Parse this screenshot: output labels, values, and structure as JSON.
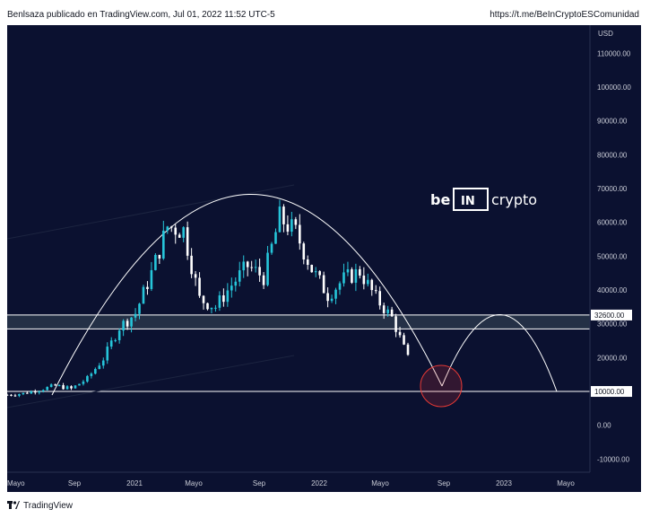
{
  "header": {
    "published": "Benlsaza publicado en TradingView.com, Jul 01, 2022 11:52 UTC-5",
    "link": "https://t.me/BeInCryptoESComunidad"
  },
  "footer": {
    "brand": "TradingView"
  },
  "watermark": {
    "prefix": "be",
    "mark": "IN",
    "suffix": "crypto"
  },
  "colors": {
    "background": "#0b1130",
    "candle_up": "#26c6da",
    "candle_down": "#ffffff",
    "arc": "#ffffff",
    "circle": "#e53935",
    "zone_fill": "#3b4a5a"
  },
  "chart_data": {
    "type": "candlestick",
    "currency": "USD",
    "y_axis": {
      "label": "USD",
      "range": [
        -15000,
        118000
      ],
      "ticks": [
        "110000.00",
        "100000.00",
        "90000.00",
        "80000.00",
        "70000.00",
        "60000.00",
        "50000.00",
        "40000.00",
        "30000.00",
        "20000.00",
        "10000.00",
        "0.00",
        "-10000.00"
      ]
    },
    "x_axis": {
      "ticks": [
        "Mayo",
        "Sep",
        "2021",
        "Mayo",
        "Sep",
        "2022",
        "Mayo",
        "Sep",
        "2023",
        "Mayo"
      ]
    },
    "price_labels": [
      {
        "value": 32600,
        "text": "32600.00"
      },
      {
        "value": 10000,
        "text": "10000.00"
      }
    ],
    "horizontal_levels": [
      32600,
      28500,
      10000
    ],
    "resistance_zone": [
      28500,
      32600
    ],
    "weekly_close": [
      {
        "date": "2020-05",
        "close": 9000
      },
      {
        "date": "2020-06",
        "close": 9400
      },
      {
        "date": "2020-07",
        "close": 10500
      },
      {
        "date": "2020-08",
        "close": 11700
      },
      {
        "date": "2020-09",
        "close": 10800
      },
      {
        "date": "2020-10",
        "close": 13800
      },
      {
        "date": "2020-11",
        "close": 19700
      },
      {
        "date": "2020-12",
        "close": 29000
      },
      {
        "date": "2021-01",
        "close": 33100
      },
      {
        "date": "2021-02",
        "close": 45000
      },
      {
        "date": "2021-03",
        "close": 58800
      },
      {
        "date": "2021-04",
        "close": 57700
      },
      {
        "date": "2021-05",
        "close": 37300
      },
      {
        "date": "2021-06",
        "close": 35000
      },
      {
        "date": "2021-07",
        "close": 41500
      },
      {
        "date": "2021-08",
        "close": 47100
      },
      {
        "date": "2021-09",
        "close": 43800
      },
      {
        "date": "2021-10",
        "close": 61300
      },
      {
        "date": "2021-11",
        "close": 57000
      },
      {
        "date": "2021-12",
        "close": 46200
      },
      {
        "date": "2022-01",
        "close": 38500
      },
      {
        "date": "2022-02",
        "close": 43200
      },
      {
        "date": "2022-03",
        "close": 45500
      },
      {
        "date": "2022-04",
        "close": 37600
      },
      {
        "date": "2022-05",
        "close": 31800
      },
      {
        "date": "2022-06",
        "close": 19900
      }
    ]
  }
}
